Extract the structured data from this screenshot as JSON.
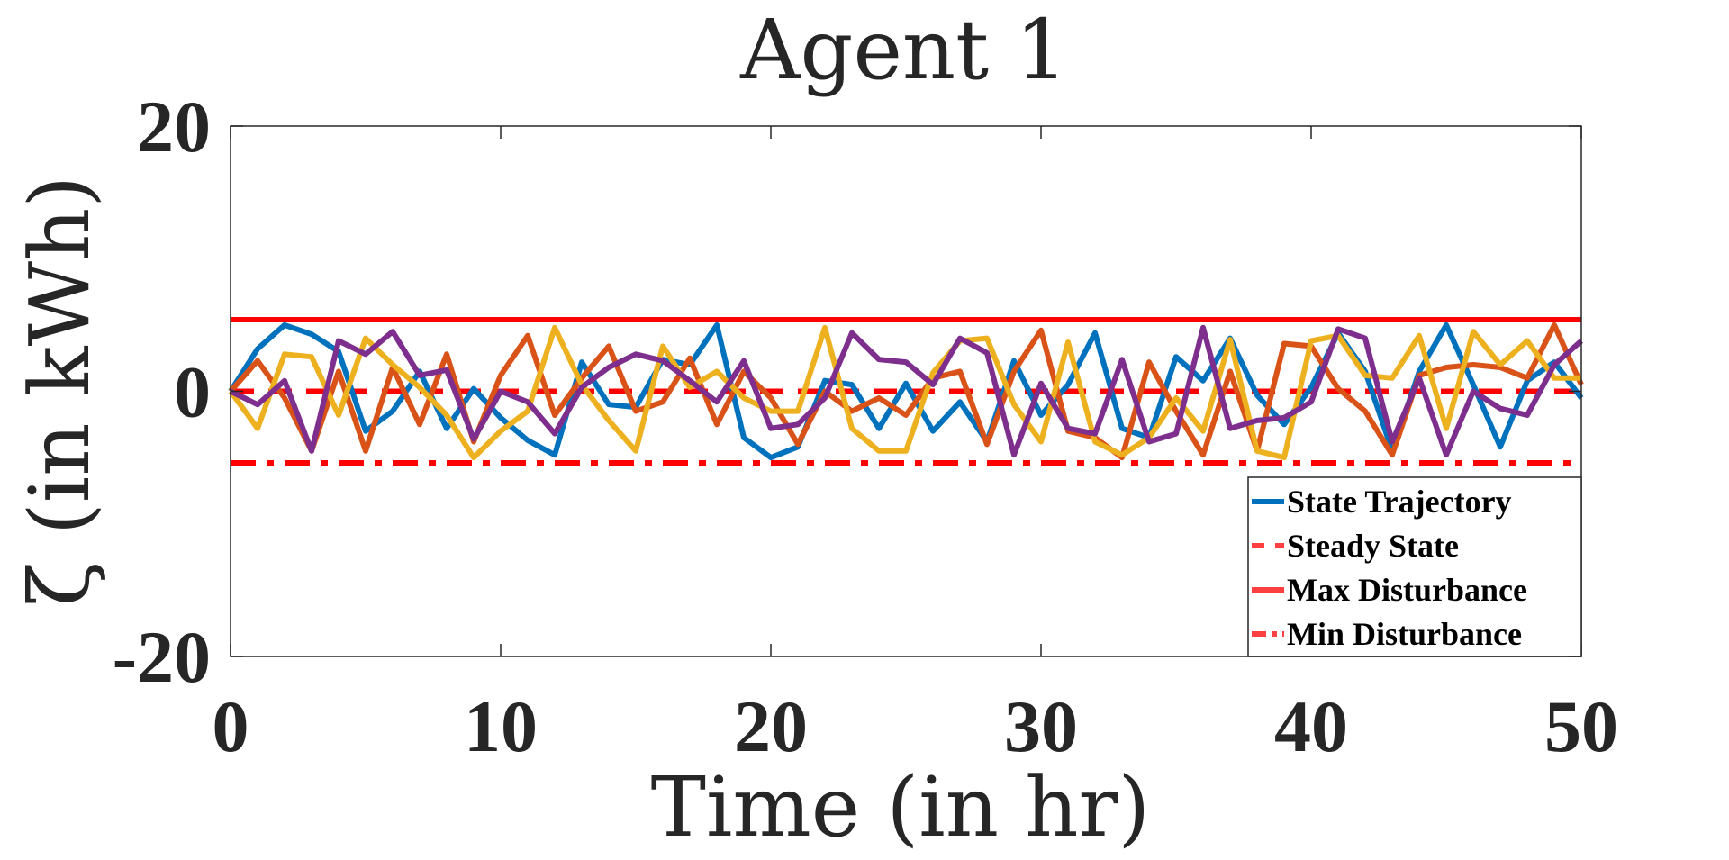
{
  "chart_data": {
    "type": "line",
    "title": "Agent 1",
    "xlabel": "Time (in hr)",
    "ylabel": "ζ (in kWh)",
    "xlim": [
      0,
      50
    ],
    "ylim": [
      -20,
      20
    ],
    "xticks": [
      "0",
      "10",
      "20",
      "30",
      "40",
      "50"
    ],
    "yticks": [
      "20",
      "0",
      "-20"
    ],
    "x": [
      0,
      1,
      2,
      3,
      4,
      5,
      6,
      7,
      8,
      9,
      10,
      11,
      12,
      13,
      14,
      15,
      16,
      17,
      18,
      19,
      20,
      21,
      22,
      23,
      24,
      25,
      26,
      27,
      28,
      29,
      30,
      31,
      32,
      33,
      34,
      35,
      36,
      37,
      38,
      39,
      40,
      41,
      42,
      43,
      44,
      45,
      46,
      47,
      48,
      49,
      50
    ],
    "series": [
      {
        "name": "State Trajectory",
        "color": "#0072BD",
        "values": [
          0,
          3.2,
          5.0,
          4.3,
          3.0,
          -3.0,
          -1.5,
          1.5,
          -2.8,
          0.2,
          -2.0,
          -3.7,
          -4.8,
          2.2,
          -1.0,
          -1.2,
          2.4,
          2.0,
          5.0,
          -3.5,
          -5.0,
          -4.2,
          0.8,
          0.5,
          -2.8,
          0.6,
          -3.0,
          -0.8,
          -3.8,
          2.3,
          -1.8,
          0.5,
          4.4,
          -2.8,
          -3.5,
          2.6,
          0.8,
          4.0,
          -0.3,
          -2.5,
          0.3,
          4.4,
          1.5,
          -4.5,
          1.5,
          5.0,
          0.5,
          -4.2,
          0.8,
          2.2,
          -0.5
        ]
      },
      {
        "name": "",
        "color": "#D95319",
        "values": [
          0,
          2.3,
          -0.5,
          -4.5,
          1.5,
          -4.5,
          1.8,
          -2.5,
          2.8,
          -3.8,
          1.2,
          4.2,
          -1.8,
          1.0,
          3.4,
          -1.5,
          -0.8,
          2.5,
          -2.5,
          1.5,
          -0.5,
          -4.0,
          0.0,
          -1.5,
          -0.5,
          -1.8,
          1.0,
          1.5,
          -4.0,
          1.5,
          4.6,
          -3.0,
          -3.5,
          -5.0,
          2.2,
          -1.5,
          -4.8,
          1.5,
          -4.5,
          3.6,
          3.4,
          0.2,
          -1.5,
          -4.8,
          1.2,
          1.8,
          2.0,
          1.8,
          1.0,
          5.0,
          0.5
        ]
      },
      {
        "name": "",
        "color": "#EDB120",
        "values": [
          0,
          -2.8,
          2.8,
          2.6,
          -1.8,
          4.0,
          2.0,
          0.3,
          -1.8,
          -5.0,
          -3.0,
          -1.5,
          4.8,
          0.5,
          -2.2,
          -4.5,
          3.4,
          0.3,
          1.5,
          -0.5,
          -1.5,
          -1.5,
          4.8,
          -2.8,
          -4.5,
          -4.5,
          1.4,
          3.8,
          4.0,
          -1.0,
          -3.8,
          3.7,
          -3.8,
          -4.8,
          -3.5,
          -0.5,
          -3.0,
          3.9,
          -4.5,
          -5.0,
          3.8,
          4.2,
          1.2,
          1.0,
          4.2,
          -2.8,
          4.5,
          2.0,
          3.8,
          1.0,
          1.0
        ]
      },
      {
        "name": "",
        "color": "#7E2F8E",
        "values": [
          0,
          -1.0,
          0.8,
          -4.5,
          3.8,
          2.8,
          4.5,
          1.2,
          1.6,
          -3.6,
          0.0,
          -0.8,
          -3.2,
          0.3,
          1.8,
          2.8,
          2.3,
          0.8,
          -0.8,
          2.3,
          -2.8,
          -2.5,
          -0.5,
          4.4,
          2.4,
          2.2,
          0.5,
          4.0,
          2.9,
          -4.8,
          0.6,
          -2.8,
          -3.2,
          2.4,
          -3.8,
          -3.2,
          4.8,
          -2.8,
          -2.2,
          -2.0,
          -0.8,
          4.7,
          4.0,
          -3.8,
          1.0,
          -4.8,
          0.0,
          -1.3,
          -1.8,
          2.0,
          3.8
        ]
      }
    ],
    "reference_lines": [
      {
        "name": "Steady State",
        "y": 0,
        "style": "dashed",
        "color": "#FF0000"
      },
      {
        "name": "Max Disturbance",
        "y": 5.4,
        "style": "solid",
        "color": "#FF0000"
      },
      {
        "name": "Min Disturbance",
        "y": -5.4,
        "style": "dashdot",
        "color": "#FF0000"
      }
    ],
    "legend": {
      "placement": "bottom-right",
      "entries": [
        "State Trajectory",
        "Steady State",
        "Max Disturbance",
        "Min Disturbance"
      ]
    },
    "grid": false
  }
}
